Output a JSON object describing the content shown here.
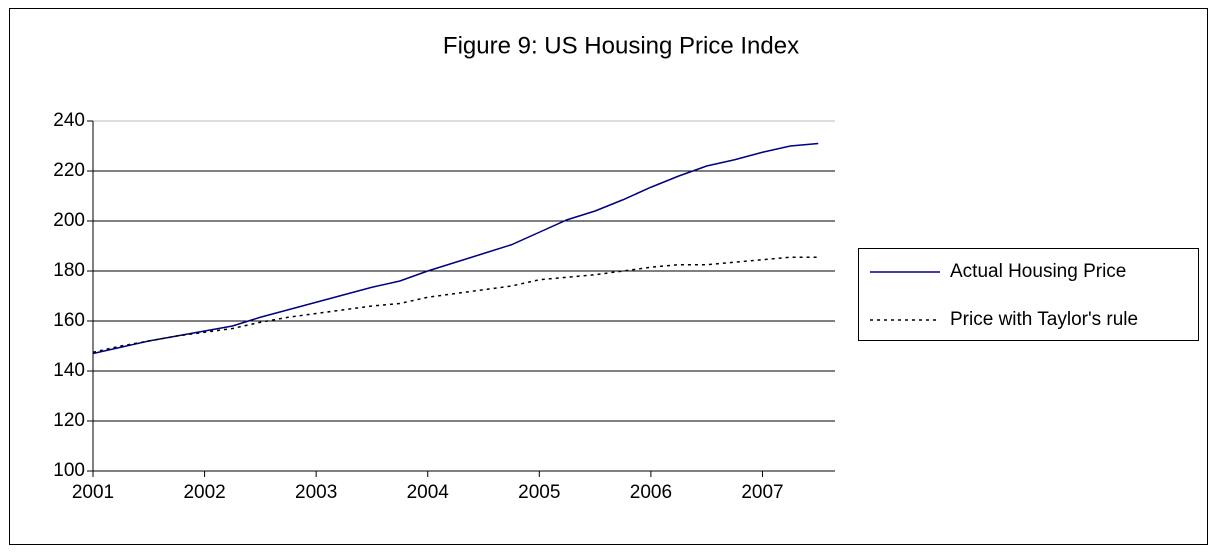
{
  "chart_data": {
    "type": "line",
    "title": "Figure 9: US Housing Price Index",
    "x": [
      2001,
      2001.25,
      2001.5,
      2001.75,
      2002,
      2002.25,
      2002.5,
      2002.75,
      2003,
      2003.25,
      2003.5,
      2003.75,
      2004,
      2004.25,
      2004.5,
      2004.75,
      2005,
      2005.25,
      2005.5,
      2005.75,
      2006,
      2006.25,
      2006.5,
      2006.75,
      2007,
      2007.25,
      2007.5
    ],
    "series": [
      {
        "name": "Actual Housing Price",
        "color": "#000080",
        "dash": "solid",
        "values": [
          147,
          149.5,
          152,
          154,
          156,
          158,
          161.5,
          164.5,
          167.5,
          170.5,
          173.5,
          176,
          180,
          183.5,
          187,
          190.5,
          195.5,
          200.5,
          204,
          208.5,
          213.5,
          218,
          222,
          224.5,
          227.5,
          230,
          231
        ]
      },
      {
        "name": "Price with Taylor's rule",
        "color": "#000000",
        "dash": "dotted",
        "values": [
          147.5,
          150,
          152,
          154,
          155.5,
          157,
          159.5,
          161.5,
          163,
          164.5,
          166,
          167,
          169.5,
          171,
          172.5,
          174,
          176.5,
          177.5,
          178.5,
          180,
          181.5,
          182.5,
          182.5,
          183.5,
          184.5,
          185.5,
          185.5
        ]
      }
    ],
    "xlim": [
      2001,
      2007.65
    ],
    "xticks": [
      2001,
      2002,
      2003,
      2004,
      2005,
      2006,
      2007
    ],
    "ylim": [
      100,
      240
    ],
    "yticks": [
      100,
      120,
      140,
      160,
      180,
      200,
      220,
      240
    ],
    "grid": true,
    "legend": "right"
  }
}
